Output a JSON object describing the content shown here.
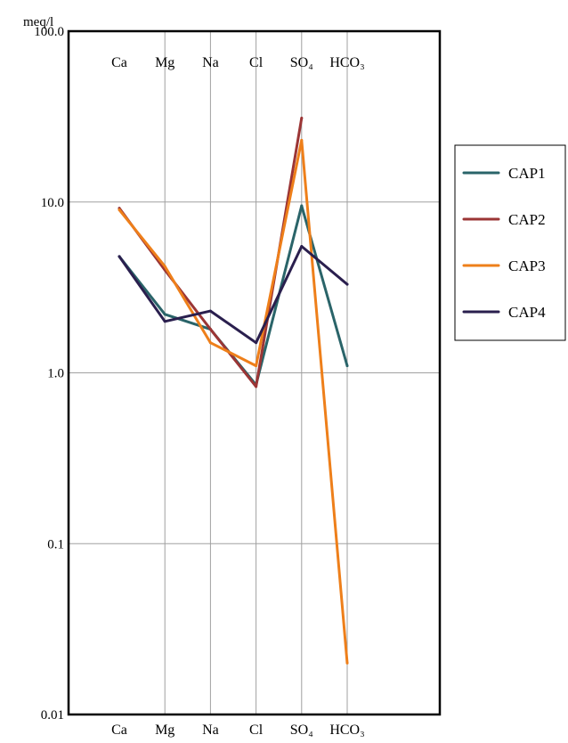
{
  "chart_data": {
    "type": "line",
    "ylabel": "meq/l",
    "yscale": "log",
    "ylim": [
      0.01,
      100
    ],
    "y_ticks": [
      0.01,
      0.1,
      1,
      10,
      100
    ],
    "y_tick_labels": [
      "0.01",
      "0.1",
      "1.0",
      "10.0",
      "100.0"
    ],
    "categories": [
      "Ca",
      "Mg",
      "Na",
      "Cl",
      "SO₄",
      "HCO₃"
    ],
    "grid": true,
    "legend_position": "right",
    "series": [
      {
        "name": "CAP1",
        "color": "#2A6469",
        "values": [
          4.8,
          2.2,
          1.8,
          0.85,
          9.5,
          1.1
        ]
      },
      {
        "name": "CAP2",
        "color": "#9B3535",
        "values": [
          9.2,
          4.0,
          1.8,
          0.83,
          31,
          null
        ]
      },
      {
        "name": "CAP3",
        "color": "#EE7F1A",
        "values": [
          9.0,
          4.2,
          1.5,
          1.1,
          23,
          0.02
        ]
      },
      {
        "name": "CAP4",
        "color": "#2A1F4E",
        "values": [
          4.8,
          2.0,
          2.3,
          1.5,
          5.5,
          3.3
        ]
      }
    ]
  }
}
